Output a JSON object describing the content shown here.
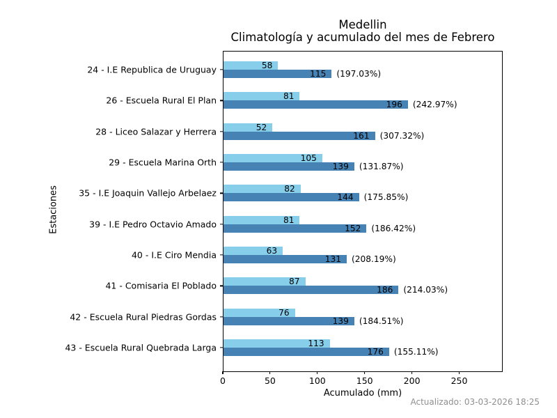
{
  "chart_data": {
    "type": "bar",
    "orientation": "horizontal",
    "title": "Medellin",
    "subtitle": "Climatología y acumulado del mes de Febrero",
    "xlabel": "Acumulado (mm)",
    "ylabel": "Estaciones",
    "xlim": [
      0,
      296
    ],
    "xticks": [
      0,
      50,
      100,
      150,
      200,
      250
    ],
    "grid": false,
    "legend": "none",
    "colors": {
      "light_bar": "#87CEEB",
      "dark_bar": "#4682B4",
      "bar_label": "#000000",
      "axis": "#000000",
      "footer_text": "#8f8f8f"
    },
    "rows": [
      {
        "label": "24 - I.E Republica de Uruguay",
        "light": 58,
        "dark": 115,
        "pct": "(197.03%)"
      },
      {
        "label": "26 - Escuela Rural El Plan",
        "light": 81,
        "dark": 196,
        "pct": "(242.97%)"
      },
      {
        "label": "28 - Liceo Salazar y Herrera",
        "light": 52,
        "dark": 161,
        "pct": "(307.32%)"
      },
      {
        "label": "29 - Escuela Marina Orth",
        "light": 105,
        "dark": 139,
        "pct": "(131.87%)"
      },
      {
        "label": "35 - I.E Joaquin Vallejo Arbelaez",
        "light": 82,
        "dark": 144,
        "pct": "(175.85%)"
      },
      {
        "label": "39 - I.E Pedro Octavio Amado",
        "light": 81,
        "dark": 152,
        "pct": "(186.42%)"
      },
      {
        "label": "40 - I.E Ciro Mendia",
        "light": 63,
        "dark": 131,
        "pct": "(208.19%)"
      },
      {
        "label": "41 - Comisaria El Poblado",
        "light": 87,
        "dark": 186,
        "pct": "(214.03%)"
      },
      {
        "label": "42 - Escuela Rural Piedras Gordas",
        "light": 76,
        "dark": 139,
        "pct": "(184.51%)"
      },
      {
        "label": "43 - Escuela Rural Quebrada Larga",
        "light": 113,
        "dark": 176,
        "pct": "(155.11%)"
      }
    ]
  },
  "footer": {
    "updated": "Actualizado: 03-03-2026 18:25"
  }
}
